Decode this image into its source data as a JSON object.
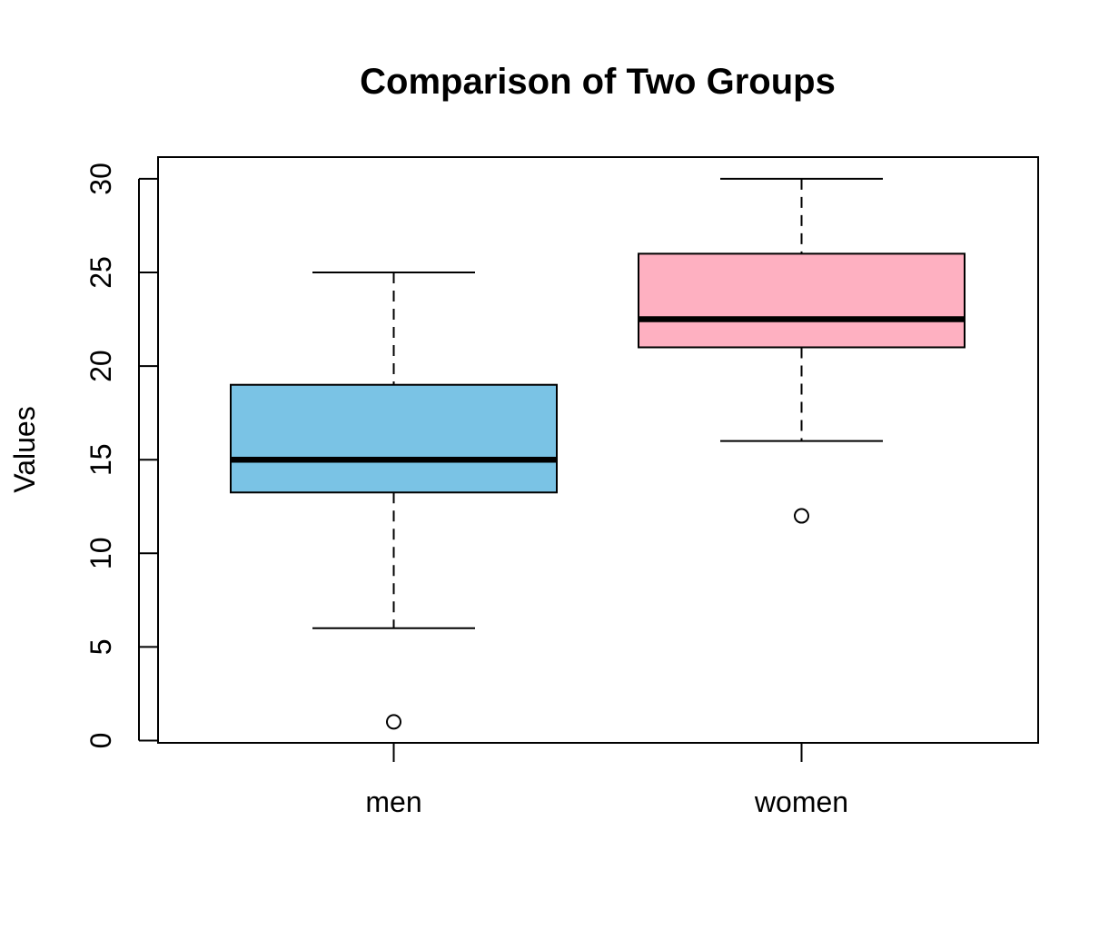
{
  "chart_data": {
    "type": "boxplot",
    "title": "Comparison of Two Groups",
    "xlabel": "",
    "ylabel": "Values",
    "ylim": [
      0,
      31
    ],
    "yticks": [
      0,
      5,
      10,
      15,
      20,
      25,
      30
    ],
    "ytick_labels": [
      "0",
      "5",
      "10",
      "15",
      "20",
      "25",
      "30"
    ],
    "categories": [
      "men",
      "women"
    ],
    "grid": false,
    "legend": "none",
    "groups": [
      {
        "label": "men",
        "color": "#7AC3E5",
        "whisker_low": 6,
        "q1": 13.25,
        "median": 15,
        "q3": 19,
        "whisker_high": 25,
        "outliers": [
          1
        ]
      },
      {
        "label": "women",
        "color": "#FEB0C1",
        "whisker_low": 16,
        "q1": 21,
        "median": 22.5,
        "q3": 26,
        "whisker_high": 30,
        "outliers": [
          12
        ]
      }
    ]
  }
}
